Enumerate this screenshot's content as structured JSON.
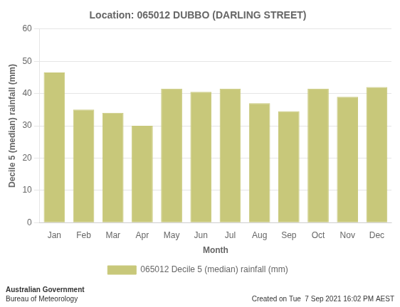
{
  "chart_data": {
    "type": "bar",
    "title": "Location: 065012 DUBBO (DARLING STREET)",
    "xlabel": "Month",
    "ylabel": "Decile 5 (median) rainfall (mm)",
    "categories": [
      "Jan",
      "Feb",
      "Mar",
      "Apr",
      "May",
      "Jun",
      "Jul",
      "Aug",
      "Sep",
      "Oct",
      "Nov",
      "Dec"
    ],
    "series": [
      {
        "name": "065012 Decile 5 (median) rainfall (mm)",
        "color": "#c8c87a",
        "values": [
          46.5,
          35.0,
          34.0,
          30.0,
          41.5,
          40.5,
          41.5,
          37.0,
          34.5,
          41.5,
          39.0,
          42.0
        ]
      }
    ],
    "ylim": [
      0,
      60
    ],
    "yticks": [
      0,
      10,
      20,
      30,
      40,
      50,
      60
    ],
    "grid": true,
    "legend": "bottom",
    "annotations": [
      "Australian Government",
      "Bureau of Meteorology",
      "Created on Tue  7 Sep 2021 16:02 PM AEST"
    ]
  }
}
